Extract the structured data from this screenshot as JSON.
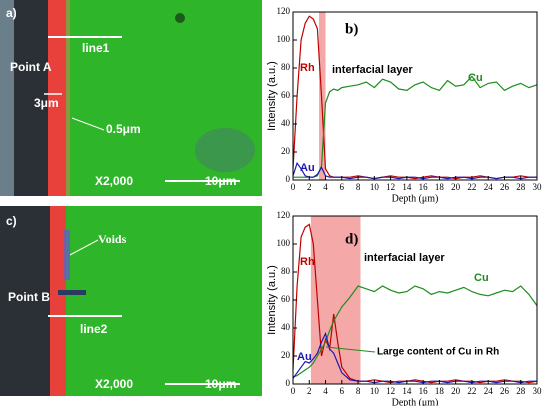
{
  "micrographs": [
    {
      "label": "a)",
      "line": "line1",
      "point": "Point A",
      "dim1": "3μm",
      "dim2": "0.5μm",
      "magnification": "X2,000",
      "scale": "10μm"
    },
    {
      "label": "c)",
      "annotation": "Voids",
      "point": "Point B",
      "line": "line2",
      "magnification": "X2,000",
      "scale": "10μm"
    }
  ],
  "chart_data": [
    {
      "type": "line",
      "panel_label": "b)",
      "xlabel": "Depth (μm)",
      "ylabel": "Intensity (a.u.)",
      "xlim": [
        0,
        30
      ],
      "ylim": [
        0,
        120
      ],
      "xticks": [
        0,
        2,
        4,
        6,
        8,
        10,
        12,
        14,
        16,
        18,
        20,
        22,
        24,
        26,
        28,
        30
      ],
      "yticks": [
        0,
        20,
        40,
        60,
        80,
        100,
        120
      ],
      "highlight": [
        3.2,
        4.0
      ],
      "highlight_color": "#f28b8b",
      "annotations": [
        "interfacial layer"
      ],
      "x": [
        0,
        0.5,
        1,
        1.5,
        2,
        2.5,
        3,
        3.5,
        4,
        4.5,
        5,
        5.5,
        6,
        7,
        8,
        9,
        10,
        11,
        12,
        13,
        14,
        15,
        16,
        17,
        18,
        19,
        20,
        21,
        22,
        23,
        24,
        25,
        26,
        27,
        28,
        29,
        30
      ],
      "series": [
        {
          "name": "Rh",
          "color": "#c00000",
          "values": [
            8,
            60,
            100,
            112,
            117,
            115,
            108,
            60,
            8,
            3,
            2,
            2,
            2,
            2,
            3,
            2,
            1,
            2,
            3,
            2,
            2,
            1,
            2,
            3,
            2,
            2,
            1,
            2,
            2,
            3,
            2,
            1,
            2,
            2,
            3,
            2,
            2
          ]
        },
        {
          "name": "Cu",
          "color": "#1e8c1e",
          "values": [
            2,
            2,
            2,
            2,
            2,
            2,
            3,
            10,
            55,
            63,
            65,
            64,
            66,
            67,
            68,
            70,
            66,
            72,
            70,
            65,
            64,
            68,
            70,
            66,
            64,
            71,
            67,
            68,
            74,
            66,
            69,
            70,
            64,
            67,
            69,
            66,
            68
          ]
        },
        {
          "name": "Au",
          "color": "#1a1ab0",
          "values": [
            3,
            12,
            8,
            3,
            2,
            2,
            4,
            9,
            3,
            2,
            2,
            2,
            2,
            1,
            2,
            2,
            1,
            2,
            2,
            1,
            2,
            2,
            1,
            2,
            2,
            1,
            2,
            2,
            1,
            2,
            2,
            1,
            2,
            2,
            1,
            2,
            2
          ]
        }
      ]
    },
    {
      "type": "line",
      "panel_label": "d)",
      "xlabel": "Depth (μm)",
      "ylabel": "Intensity (a.u.)",
      "xlim": [
        0,
        30
      ],
      "ylim": [
        0,
        120
      ],
      "xticks": [
        0,
        2,
        4,
        6,
        8,
        10,
        12,
        14,
        16,
        18,
        20,
        22,
        24,
        26,
        28,
        30
      ],
      "yticks": [
        0,
        20,
        40,
        60,
        80,
        100,
        120
      ],
      "highlight": [
        2.2,
        8.3
      ],
      "highlight_color": "#f28b8b",
      "annotations": [
        "interfacial layer",
        "Large content of Cu in Rh"
      ],
      "x": [
        0,
        0.5,
        1,
        1.5,
        2,
        2.5,
        3,
        3.5,
        4,
        4.5,
        5,
        5.5,
        6,
        7,
        8,
        9,
        10,
        11,
        12,
        13,
        14,
        15,
        16,
        17,
        18,
        19,
        20,
        21,
        22,
        23,
        24,
        25,
        26,
        27,
        28,
        29,
        30
      ],
      "series": [
        {
          "name": "Rh",
          "color": "#c00000",
          "values": [
            10,
            70,
            105,
            112,
            114,
            100,
            60,
            20,
            32,
            25,
            50,
            30,
            12,
            4,
            2,
            2,
            3,
            2,
            1,
            2,
            2,
            3,
            2,
            1,
            2,
            2,
            3,
            2,
            2,
            1,
            2,
            2,
            3,
            2,
            2,
            1,
            2
          ]
        },
        {
          "name": "Cu",
          "color": "#1e8c1e",
          "values": [
            5,
            6,
            8,
            10,
            12,
            15,
            20,
            25,
            30,
            38,
            45,
            50,
            55,
            62,
            70,
            68,
            66,
            70,
            67,
            65,
            66,
            70,
            68,
            64,
            66,
            65,
            67,
            69,
            66,
            64,
            63,
            65,
            67,
            66,
            70,
            64,
            56
          ]
        },
        {
          "name": "Au",
          "color": "#1a1ab0",
          "values": [
            4,
            8,
            12,
            16,
            15,
            18,
            22,
            30,
            36,
            25,
            22,
            15,
            8,
            3,
            2,
            2,
            1,
            2,
            2,
            1,
            2,
            2,
            1,
            2,
            2,
            1,
            2,
            2,
            1,
            2,
            2,
            1,
            2,
            2,
            1,
            2,
            2
          ]
        }
      ]
    }
  ]
}
